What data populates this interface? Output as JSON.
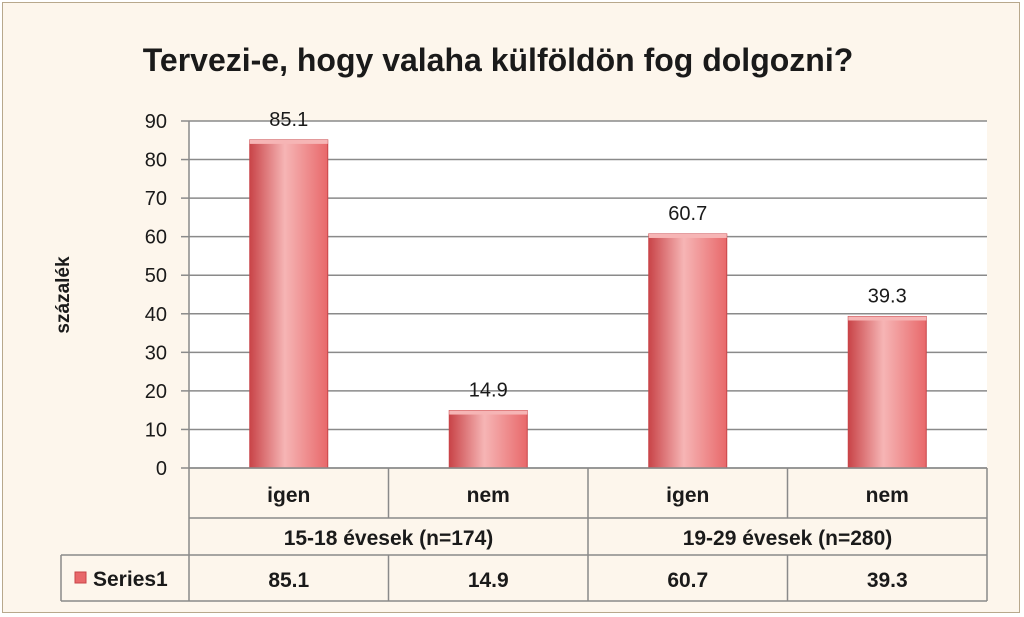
{
  "colors": {
    "bar": "#e8686a",
    "bar_dark": "#c94448",
    "bar_light": "#f6b5b5",
    "grid": "#8a8a8a"
  },
  "chart_data": {
    "type": "bar",
    "title": "Tervezi-e, hogy valaha külföldön fog dolgozni?",
    "ylabel": "százalék",
    "xlabel": "",
    "ylim": [
      0,
      90
    ],
    "yticks": [
      0,
      10,
      20,
      30,
      40,
      50,
      60,
      70,
      80,
      90
    ],
    "grid": true,
    "categories": [
      "igen",
      "nem",
      "igen",
      "nem"
    ],
    "groups": [
      {
        "label": "15-18 évesek (n=174)",
        "span": 2
      },
      {
        "label": "19-29 évesek (n=280)",
        "span": 2
      }
    ],
    "series": [
      {
        "name": "Series1",
        "values": [
          85.1,
          14.9,
          60.7,
          39.3
        ]
      }
    ],
    "data_labels": [
      "85.1",
      "14.9",
      "60.7",
      "39.3"
    ],
    "legend": "data-table-left"
  }
}
